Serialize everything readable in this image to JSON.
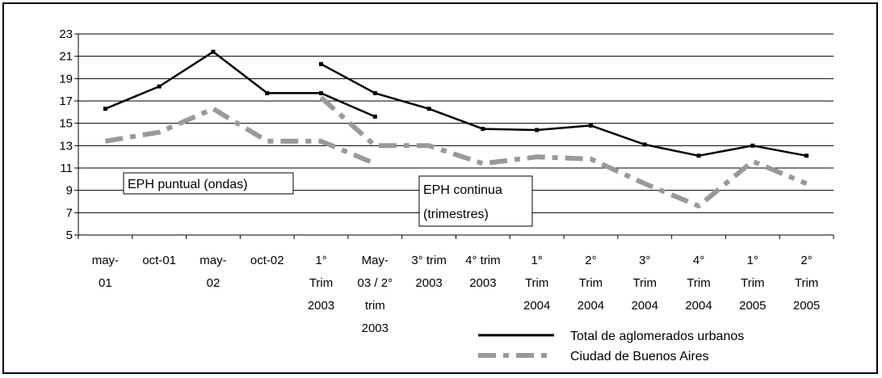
{
  "chart_data": {
    "type": "line",
    "categories": [
      [
        "may-",
        "01"
      ],
      [
        "oct-01"
      ],
      [
        "may-",
        "02"
      ],
      [
        "oct-02"
      ],
      [
        "1°",
        "Trim",
        "2003"
      ],
      [
        "May-",
        "03 / 2°",
        "trim",
        "2003"
      ],
      [
        "3° trim",
        "2003"
      ],
      [
        "4° trim",
        "2003"
      ],
      [
        "1°",
        "Trim",
        "2004"
      ],
      [
        "2°",
        "Trim",
        "2004"
      ],
      [
        "3°",
        "Trim",
        "2004"
      ],
      [
        "4°",
        "Trim",
        "2004"
      ],
      [
        "1°",
        "Trim",
        "2005"
      ],
      [
        "2°",
        "Trim",
        "2005"
      ]
    ],
    "ylim": [
      5,
      23
    ],
    "yticks": [
      5,
      7,
      9,
      11,
      13,
      15,
      17,
      19,
      21,
      23
    ],
    "grid": true,
    "series": [
      {
        "name": "Total de aglomerados urbanos",
        "color": "#000000",
        "style": "solid",
        "segments": [
          [
            [
              0,
              16.3
            ],
            [
              1,
              18.3
            ],
            [
              2,
              21.4
            ],
            [
              3,
              17.7
            ],
            [
              4,
              17.7
            ],
            [
              5,
              15.6
            ]
          ],
          [
            [
              4,
              20.3
            ],
            [
              5,
              17.7
            ],
            [
              6,
              16.3
            ],
            [
              7,
              14.5
            ],
            [
              8,
              14.4
            ],
            [
              9,
              14.8
            ],
            [
              10,
              13.1
            ],
            [
              11,
              12.1
            ],
            [
              12,
              13.0
            ],
            [
              13,
              12.1
            ]
          ]
        ]
      },
      {
        "name": "Ciudad de Buenos Aires",
        "color": "#999999",
        "style": "dash-dot",
        "segments": [
          [
            [
              0,
              13.4
            ],
            [
              1,
              14.2
            ],
            [
              2,
              16.3
            ],
            [
              3,
              13.4
            ],
            [
              4,
              13.4
            ],
            [
              5,
              11.4
            ]
          ],
          [
            [
              4,
              17.3
            ],
            [
              5,
              13.0
            ],
            [
              6,
              13.0
            ],
            [
              7,
              11.4
            ],
            [
              8,
              12.0
            ],
            [
              9,
              11.8
            ],
            [
              10,
              9.6
            ],
            [
              11,
              7.6
            ],
            [
              12,
              11.6
            ],
            [
              13,
              9.6
            ]
          ]
        ]
      }
    ],
    "annotations": {
      "puntual": "EPH puntual (ondas)",
      "continua_1": "EPH continua",
      "continua_2": "(trimestres)"
    },
    "legend_position": "bottom-right"
  }
}
